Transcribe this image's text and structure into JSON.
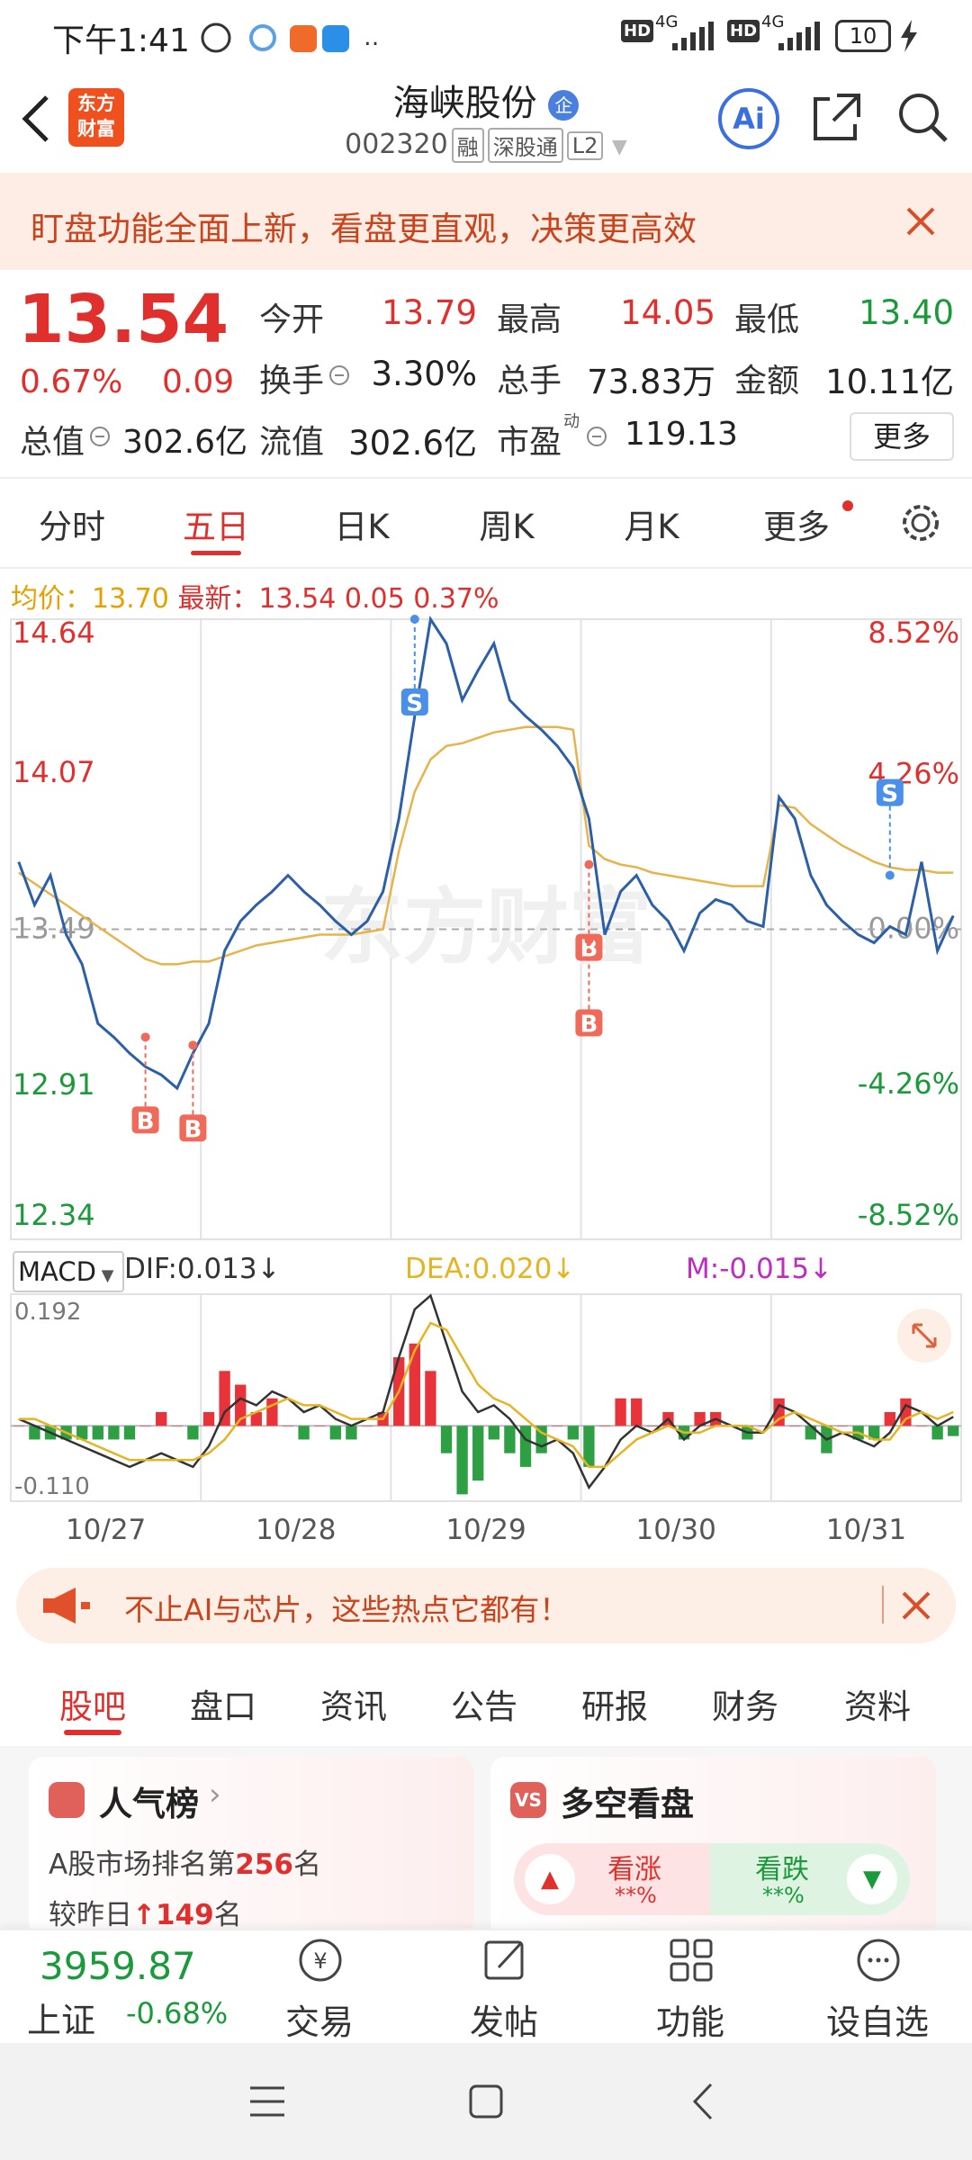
{
  "status_bar": {
    "time": "下午1:41",
    "network": [
      "HD",
      "4G",
      "HD",
      "4G"
    ],
    "battery": "10"
  },
  "header": {
    "logo_line1": "东方",
    "logo_line2": "财富",
    "title": "海峡股份",
    "title_badge": "企",
    "code": "002320",
    "tags": [
      "融",
      "深股通",
      "L2"
    ],
    "ai": "Ai"
  },
  "banner": {
    "text": "盯盘功能全面上新，看盘更直观，决策更高效"
  },
  "quote": {
    "price": "13.54",
    "change_pct": "0.67%",
    "change": "0.09",
    "open_label": "今开",
    "open": "13.79",
    "high_label": "最高",
    "high": "14.05",
    "low_label": "最低",
    "low": "13.40",
    "turnover_label": "换手",
    "turnover": "3.30%",
    "volume_label": "总手",
    "volume": "73.83万",
    "amount_label": "金额",
    "amount": "10.11亿",
    "mcap_label": "总值",
    "mcap": "302.6亿",
    "float_label": "流值",
    "float": "302.6亿",
    "pe_label": "市盈",
    "pe_sup": "动",
    "pe": "119.13",
    "more": "更多"
  },
  "tabs": {
    "items": [
      "分时",
      "五日",
      "日K",
      "周K",
      "月K",
      "更多"
    ],
    "active": 1
  },
  "chart_info": {
    "avg": "13.70",
    "last": "13.54",
    "change": "0.05",
    "change_pct": "0.37%"
  },
  "chart_data": [
    {
      "type": "line",
      "watermark": "东方财富",
      "ylim": [
        12.34,
        14.64
      ],
      "yticks": [
        14.64,
        14.07,
        13.49,
        12.91,
        12.34
      ],
      "y2lim": [
        -8.52,
        8.52
      ],
      "y2ticks": [
        {
          "value": 8.52,
          "label": "8.52%"
        },
        {
          "value": 4.26,
          "label": "4.26%"
        },
        {
          "value": 0,
          "label": "0.00%"
        },
        {
          "value": -4.26,
          "label": "-4.26%"
        },
        {
          "value": -8.52,
          "label": "-8.52%"
        }
      ],
      "series": [
        {
          "name": "最新：",
          "color": "#2b5fa8",
          "values": [
            13.74,
            13.58,
            13.69,
            13.47,
            13.36,
            13.14,
            13.09,
            13.03,
            12.98,
            12.95,
            12.9,
            13.03,
            13.14,
            13.41,
            13.52,
            13.58,
            13.63,
            13.69,
            13.63,
            13.58,
            13.52,
            13.47,
            13.52,
            13.63,
            13.9,
            14.28,
            14.64,
            14.55,
            14.34,
            14.45,
            14.55,
            14.34,
            14.28,
            14.23,
            14.17,
            14.09,
            13.9,
            13.47,
            13.63,
            13.69,
            13.58,
            13.52,
            13.41,
            13.55,
            13.6,
            13.58,
            13.52,
            13.5,
            13.98,
            13.9,
            13.69,
            13.58,
            13.52,
            13.47,
            13.44,
            13.5,
            13.47,
            13.74,
            13.41,
            13.54
          ]
        },
        {
          "name": "均价：",
          "color": "#e8b34a",
          "values": [
            13.7,
            13.66,
            13.62,
            13.58,
            13.54,
            13.5,
            13.46,
            13.42,
            13.38,
            13.36,
            13.36,
            13.37,
            13.37,
            13.39,
            13.41,
            13.43,
            13.44,
            13.45,
            13.46,
            13.47,
            13.47,
            13.47,
            13.48,
            13.49,
            13.78,
            14.0,
            14.12,
            14.17,
            14.18,
            14.2,
            14.22,
            14.23,
            14.24,
            14.24,
            14.24,
            14.23,
            13.8,
            13.75,
            13.73,
            13.72,
            13.7,
            13.69,
            13.68,
            13.67,
            13.66,
            13.65,
            13.65,
            13.65,
            13.95,
            13.94,
            13.88,
            13.84,
            13.8,
            13.77,
            13.74,
            13.72,
            13.71,
            13.71,
            13.7,
            13.7
          ]
        }
      ],
      "markers": [
        {
          "label": "B",
          "x": 8,
          "value": 13.09
        },
        {
          "label": "B",
          "x": 11,
          "value": 13.06
        },
        {
          "label": "S",
          "x": 25,
          "value": 14.64
        },
        {
          "label": "B",
          "x": 36,
          "value": 13.73
        },
        {
          "label": "B",
          "x": 36,
          "value": 13.45
        },
        {
          "label": "S",
          "x": 55,
          "value": 13.69
        }
      ]
    },
    {
      "type": "macd",
      "indicator": "MACD",
      "ylim": [
        -0.11,
        0.192
      ],
      "yticks": [
        0.192,
        {
          "value": -0.11,
          "label": "-0.110"
        }
      ],
      "day_labels": [
        "10/27",
        "10/28",
        "10/29",
        "10/30",
        "10/31"
      ],
      "series": [
        {
          "name": "DIF:0.013↓",
          "color": "#333333",
          "values": [
            0.01,
            0,
            -0.01,
            -0.02,
            -0.03,
            -0.04,
            -0.05,
            -0.06,
            -0.05,
            -0.04,
            -0.05,
            -0.06,
            -0.03,
            0.02,
            0.04,
            0.03,
            0.05,
            0.04,
            0.02,
            0.03,
            0.01,
            0,
            0.01,
            0.02,
            0.1,
            0.17,
            0.19,
            0.12,
            0.05,
            0.02,
            0.03,
            0.01,
            -0.02,
            -0.03,
            -0.02,
            -0.04,
            -0.09,
            -0.06,
            -0.02,
            0,
            -0.01,
            0.01,
            -0.02,
            0,
            0.01,
            0,
            -0.01,
            -0.01,
            0.03,
            0.02,
            0,
            -0.02,
            -0.01,
            -0.02,
            -0.03,
            -0.01,
            0.03,
            0.02,
            0,
            0.013
          ]
        },
        {
          "name": "DEA:0.020↓",
          "color": "#e6b422",
          "values": [
            0.01,
            0.01,
            0,
            -0.01,
            -0.02,
            -0.03,
            -0.04,
            -0.05,
            -0.05,
            -0.05,
            -0.05,
            -0.05,
            -0.04,
            -0.02,
            0.01,
            0.02,
            0.03,
            0.04,
            0.03,
            0.03,
            0.02,
            0.01,
            0.01,
            0.01,
            0.05,
            0.11,
            0.15,
            0.14,
            0.1,
            0.06,
            0.04,
            0.03,
            0.01,
            -0.01,
            -0.02,
            -0.03,
            -0.06,
            -0.06,
            -0.04,
            -0.02,
            -0.01,
            0,
            -0.01,
            -0.01,
            0,
            0,
            0,
            -0.01,
            0.01,
            0.02,
            0.01,
            0,
            -0.01,
            -0.01,
            -0.02,
            -0.02,
            0.01,
            0.02,
            0.01,
            0.02
          ]
        },
        {
          "name": "M:-0.015↓",
          "color": "#e8333a",
          "negative_color": "#2ea043",
          "values": [
            0,
            -0.02,
            -0.02,
            -0.02,
            -0.02,
            -0.02,
            -0.02,
            -0.02,
            0,
            0.02,
            0,
            -0.02,
            0.02,
            0.08,
            0.06,
            0.02,
            0.04,
            0,
            -0.02,
            0,
            -0.02,
            -0.02,
            0,
            0.02,
            0.1,
            0.12,
            0.08,
            -0.04,
            -0.1,
            -0.08,
            -0.02,
            -0.04,
            -0.06,
            -0.04,
            0,
            -0.02,
            -0.06,
            0,
            0.04,
            0.04,
            0,
            0.02,
            -0.02,
            0.02,
            0.02,
            0,
            -0.02,
            0,
            0.04,
            0,
            -0.02,
            -0.04,
            0,
            -0.02,
            -0.02,
            0.02,
            0.04,
            0,
            -0.02,
            -0.015
          ]
        }
      ]
    }
  ],
  "ad": {
    "text": "不止AI与芯片，这些热点它都有！"
  },
  "sub_tabs": {
    "items": [
      "股吧",
      "盘口",
      "资讯",
      "公告",
      "研报",
      "财务",
      "资料"
    ],
    "active": 0
  },
  "cards": {
    "popularity": {
      "title": "人气榜",
      "rank_prefix": "A股市场排名第",
      "rank": "256",
      "rank_suffix": "名",
      "change_prefix": "较昨日",
      "change": "149",
      "change_suffix": "名"
    },
    "sentiment": {
      "title": "多空看盘",
      "up_label": "看涨",
      "up_value": "**%",
      "down_label": "看跌",
      "down_value": "**%"
    }
  },
  "bottom_bar": {
    "index_value": "3959.87",
    "index_name": "上证",
    "index_change": "-0.68%",
    "actions": [
      "交易",
      "发帖",
      "功能",
      "设自选"
    ]
  }
}
